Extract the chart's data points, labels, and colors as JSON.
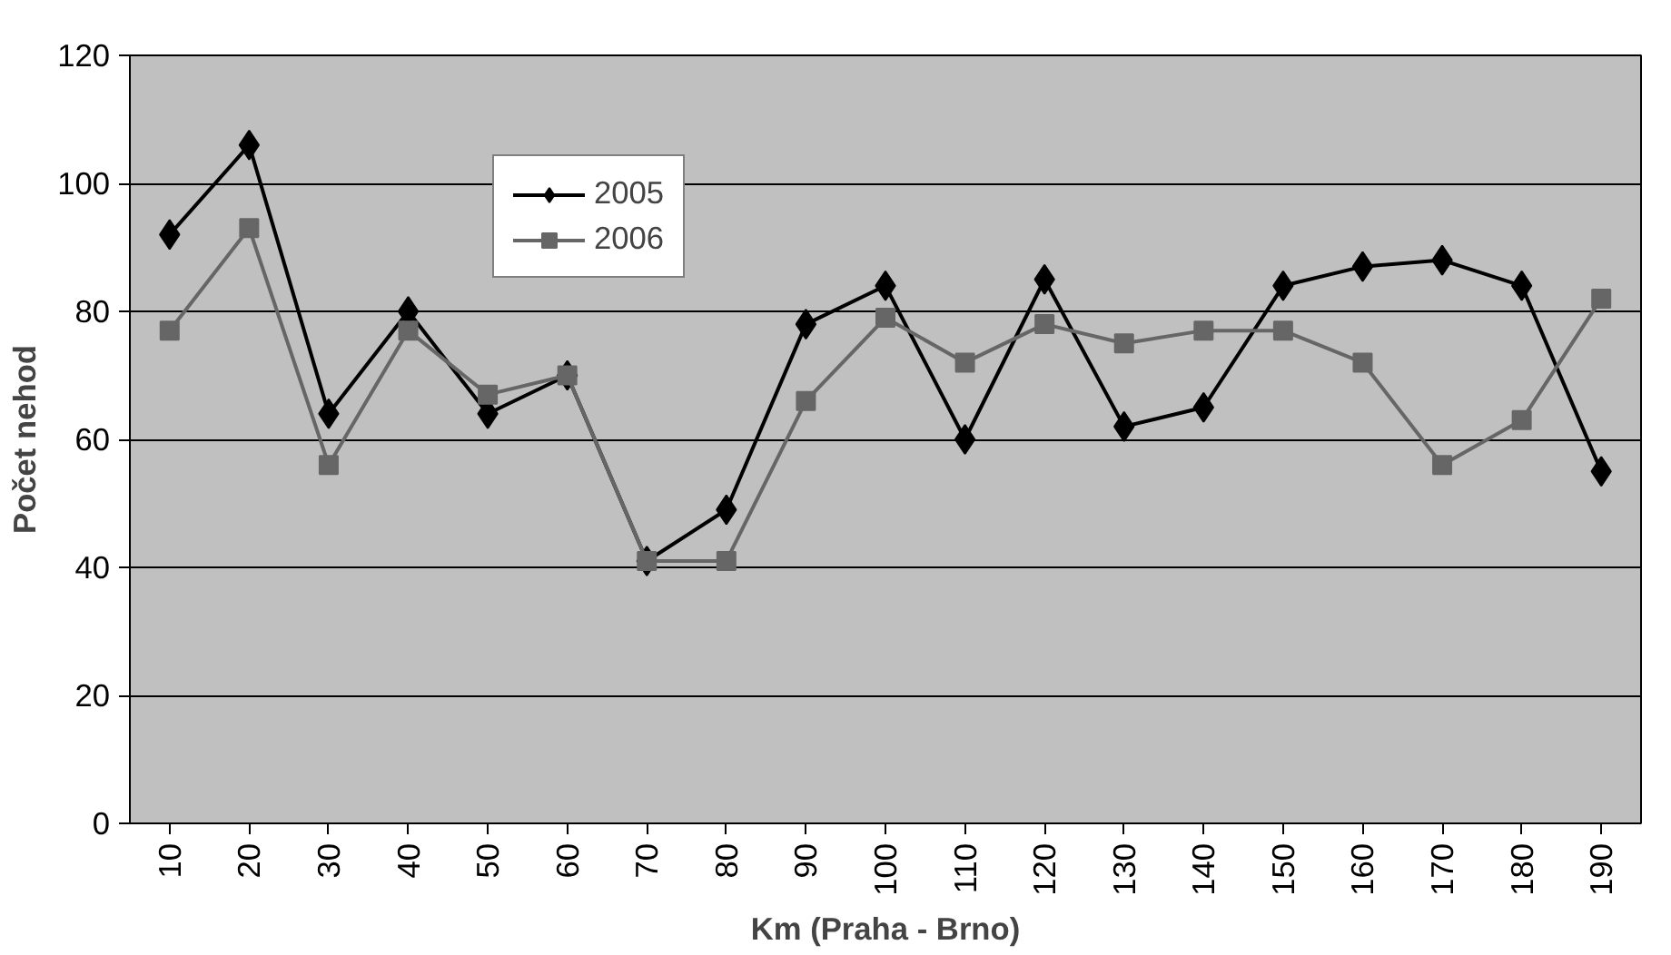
{
  "chart_data": {
    "type": "line",
    "xlabel": "Km (Praha - Brno)",
    "ylabel": "Počet nehod",
    "categories": [
      "10",
      "20",
      "30",
      "40",
      "50",
      "60",
      "70",
      "80",
      "90",
      "100",
      "110",
      "120",
      "130",
      "140",
      "150",
      "160",
      "170",
      "180",
      "190"
    ],
    "series": [
      {
        "name": "2005",
        "color": "#000000",
        "marker": "diamond",
        "values": [
          92,
          106,
          64,
          80,
          64,
          70,
          41,
          49,
          78,
          84,
          60,
          85,
          62,
          65,
          84,
          87,
          88,
          84,
          55
        ]
      },
      {
        "name": "2006",
        "color": "#666666",
        "marker": "square",
        "values": [
          77,
          93,
          56,
          77,
          67,
          70,
          41,
          41,
          66,
          79,
          72,
          78,
          75,
          77,
          77,
          72,
          56,
          63,
          82
        ]
      }
    ],
    "ylim": [
      0,
      120
    ],
    "yticks": [
      0,
      20,
      40,
      60,
      80,
      100,
      120
    ],
    "grid": "y",
    "legend": "top left",
    "line_style": "solid"
  }
}
